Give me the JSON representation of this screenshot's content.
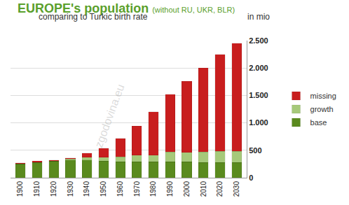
{
  "chart_data": {
    "type": "bar",
    "title": "EUROPE's population",
    "subtitle": "(without RU, UKR, BLR)",
    "annotations": [
      "comparing to Turkic birth rate",
      "zgodovina.eu"
    ],
    "y_label": "in mio",
    "categories": [
      "1900",
      "1910",
      "1920",
      "1930",
      "1940",
      "1950",
      "1960",
      "1970",
      "1980",
      "1990",
      "2000",
      "2010",
      "2020",
      "2030"
    ],
    "series": [
      {
        "name": "base",
        "color": "#5a8a1e",
        "values": [
          250,
          280,
          300,
          320,
          320,
          300,
          290,
          290,
          290,
          290,
          290,
          280,
          280,
          280
        ]
      },
      {
        "name": "growth",
        "color": "#a6c97a",
        "values": [
          0,
          0,
          0,
          20,
          50,
          70,
          90,
          120,
          120,
          180,
          170,
          190,
          200,
          200
        ]
      },
      {
        "name": "missing",
        "color": "#c81e1e",
        "values": [
          20,
          20,
          20,
          20,
          80,
          170,
          340,
          530,
          790,
          1050,
          1300,
          1530,
          1770,
          1970
        ]
      }
    ],
    "stacked": true,
    "ylim": [
      0,
      2500
    ],
    "yticks": [
      0,
      500,
      {
        "value": 1000,
        "label": "1.000"
      },
      {
        "value": 1500,
        "label": "1.500"
      },
      {
        "value": 2000,
        "label": "2.000"
      },
      {
        "value": 2500,
        "label": "2.500"
      }
    ],
    "grid": true,
    "legend": "right"
  }
}
